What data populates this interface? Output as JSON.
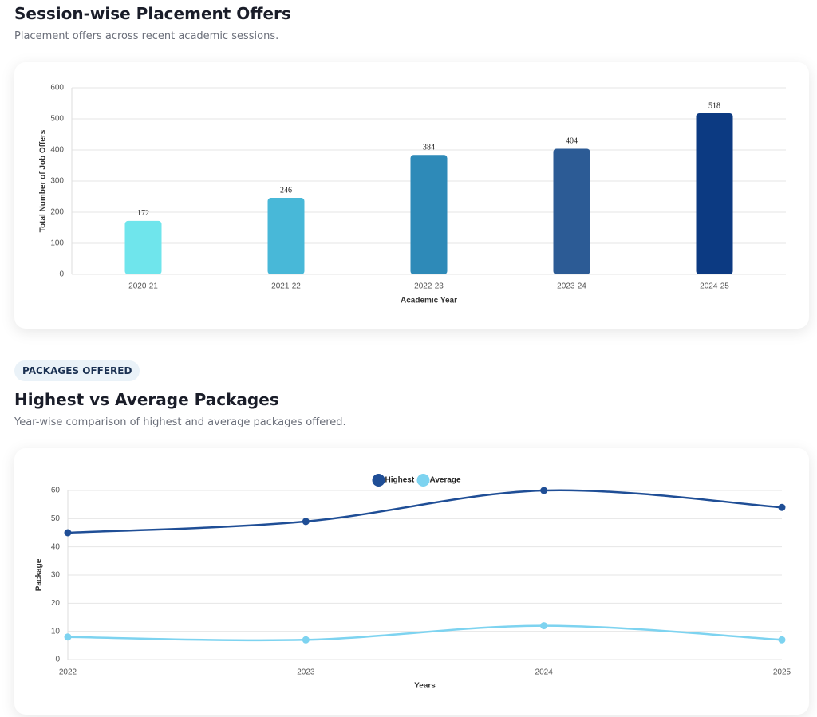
{
  "badge": "PACKAGES OFFERED",
  "chart_data": [
    {
      "type": "bar",
      "title": "Session-wise Placement Offers",
      "subtitle": "Placement offers across recent academic sessions.",
      "x_label": "Academic Year",
      "y_label": "Total Number of Job Offers",
      "categories": [
        "2020-21",
        "2021-22",
        "2022-23",
        "2023-24",
        "2024-25"
      ],
      "values": [
        172,
        246,
        384,
        404,
        518
      ],
      "colors": [
        "#6fe5ec",
        "#48b8d8",
        "#2e8ab8",
        "#2c5b95",
        "#0c3a82"
      ],
      "ylim": [
        0,
        600
      ],
      "yticks": [
        0,
        100,
        200,
        300,
        400,
        500,
        600
      ],
      "grid": true
    },
    {
      "type": "line",
      "title": "Highest vs Average Packages",
      "subtitle": "Year-wise comparison of highest and average packages offered.",
      "x_label": "Years",
      "y_label": "Package",
      "categories": [
        "2022",
        "2023",
        "2024",
        "2025"
      ],
      "series": [
        {
          "name": "Highest",
          "color": "#1f4e96",
          "values": [
            45,
            49,
            60,
            54
          ]
        },
        {
          "name": "Average",
          "color": "#7dd3f0",
          "values": [
            8,
            7,
            12,
            7
          ]
        }
      ],
      "ylim": [
        0,
        60
      ],
      "yticks": [
        0,
        10,
        20,
        30,
        40,
        50,
        60
      ],
      "grid": true,
      "legend": "top"
    }
  ]
}
